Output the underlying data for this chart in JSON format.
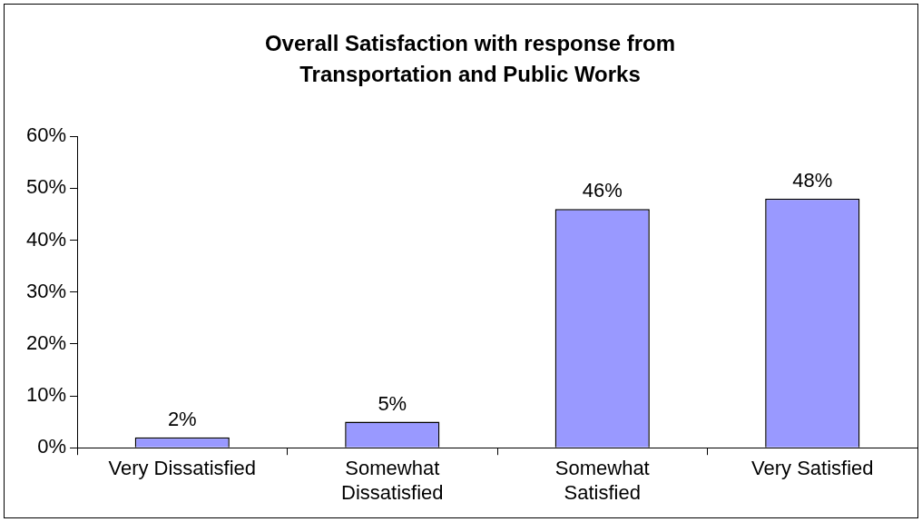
{
  "chart_data": {
    "type": "bar",
    "title": "Overall Satisfaction with response from Transportation and Public Works",
    "categories": [
      "Very Dissatisfied",
      "Somewhat Dissatisfied",
      "Somewhat Satisfied",
      "Very Satisfied"
    ],
    "values": [
      2,
      5,
      46,
      48
    ],
    "value_labels": [
      "2%",
      "5%",
      "46%",
      "48%"
    ],
    "color": "#9999ff",
    "ylim": [
      0,
      60
    ],
    "yticks": [
      {
        "value": 0,
        "label": "0%"
      },
      {
        "value": 10,
        "label": "10%"
      },
      {
        "value": 20,
        "label": "20%"
      },
      {
        "value": 30,
        "label": "30%"
      },
      {
        "value": 40,
        "label": "40%"
      },
      {
        "value": 50,
        "label": "50%"
      },
      {
        "value": 60,
        "label": "60%"
      }
    ],
    "grid": false,
    "legend": false
  }
}
